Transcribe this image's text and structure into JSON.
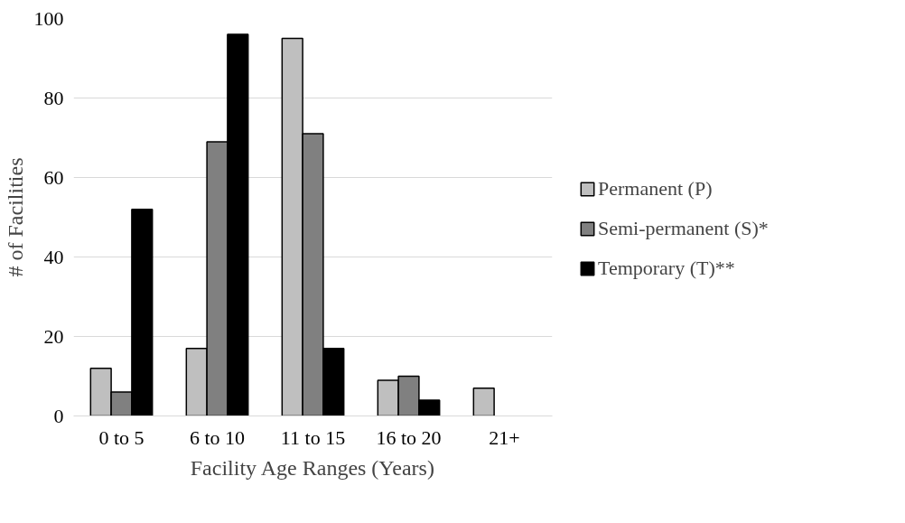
{
  "chart_data": {
    "type": "bar",
    "xlabel": "Facility Age Ranges (Years)",
    "ylabel": "# of Facilities",
    "categories": [
      "0 to 5",
      "6 to 10",
      "11 to 15",
      "16 to 20",
      "21+"
    ],
    "series": [
      {
        "name": "Permanent (P)",
        "color": "#bfbfbf",
        "values": [
          12,
          17,
          95,
          9,
          7
        ]
      },
      {
        "name": "Semi-permanent (S)*",
        "color": "#808080",
        "values": [
          6,
          69,
          71,
          10,
          null
        ]
      },
      {
        "name": "Temporary (T)**",
        "color": "#000000",
        "values": [
          52,
          96,
          17,
          4,
          null
        ]
      }
    ],
    "ylim": [
      0,
      100
    ],
    "yticks": [
      0,
      20,
      40,
      60,
      80,
      100
    ],
    "grid": "y",
    "legend": "right"
  }
}
